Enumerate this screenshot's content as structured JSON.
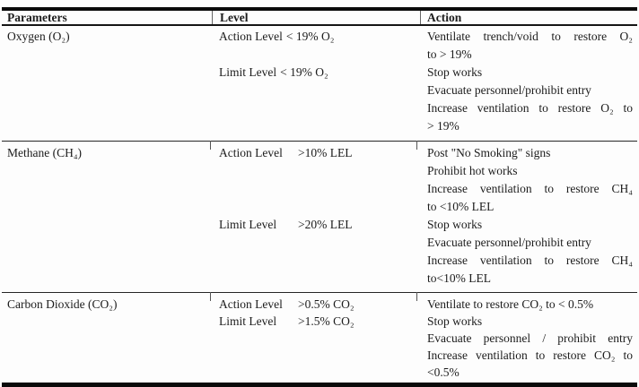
{
  "document": {
    "columns": [
      {
        "label": "Parameters"
      },
      {
        "label": "Level"
      },
      {
        "label": "Action"
      }
    ],
    "sections": [
      {
        "parameter": "Oxygen (O₂)",
        "rows": [
          {
            "level_label": "Action Level",
            "level_value": "< 19% O₂",
            "level_gap": "narrow",
            "actions": [
              {
                "t": "Ventilate trench/void to restore O₂",
                "j": true
              },
              {
                "t": "to > 19%",
                "j": false
              }
            ]
          },
          {
            "level_label": "Limit Level",
            "level_value": "< 19% O₂",
            "level_gap": "narrow",
            "actions": [
              {
                "t": "Stop works",
                "j": false
              },
              {
                "t": "Evacuate personnel/prohibit entry",
                "j": false
              },
              {
                "t": "Increase ventilation to restore O₂ to",
                "j": true
              },
              {
                "t": "> 19%",
                "j": false
              }
            ]
          }
        ]
      },
      {
        "parameter": "Methane (CH₄)",
        "rows": [
          {
            "level_label": "Action Level",
            "level_value": ">10% LEL",
            "level_gap": "wide",
            "actions": [
              {
                "t": "Post \"No Smoking\" signs",
                "j": false
              },
              {
                "t": "Prohibit hot works",
                "j": false
              },
              {
                "t": "Increase ventilation to restore CH₄",
                "j": true
              },
              {
                "t": "to <10% LEL",
                "j": false
              }
            ]
          },
          {
            "level_label": "Limit Level",
            "level_value": ">20% LEL",
            "level_gap": "wide",
            "actions": [
              {
                "t": "Stop works",
                "j": false
              },
              {
                "t": "Evacuate personnel/prohibit entry",
                "j": false
              },
              {
                "t": "Increase ventilation to restore CH₄",
                "j": true
              },
              {
                "t": "to<10% LEL",
                "j": false
              }
            ]
          }
        ]
      },
      {
        "parameter": "Carbon Dioxide (CO₂)",
        "rows": [
          {
            "level_label": "Action Level",
            "level_value": ">0.5% CO₂",
            "level_gap": "wide",
            "actions": [
              {
                "t": "Ventilate to restore CO₂ to < 0.5%",
                "j": false
              }
            ]
          },
          {
            "level_label": "Limit Level",
            "level_value": ">1.5% CO₂",
            "level_gap": "wide",
            "actions": [
              {
                "t": "Stop works",
                "j": false
              },
              {
                "t": "Evacuate personnel / prohibit entry",
                "j": true
              },
              {
                "t": "Increase ventilation to restore CO₂ to",
                "j": true
              },
              {
                "t": "<0.5%",
                "j": false
              }
            ]
          }
        ]
      }
    ]
  }
}
